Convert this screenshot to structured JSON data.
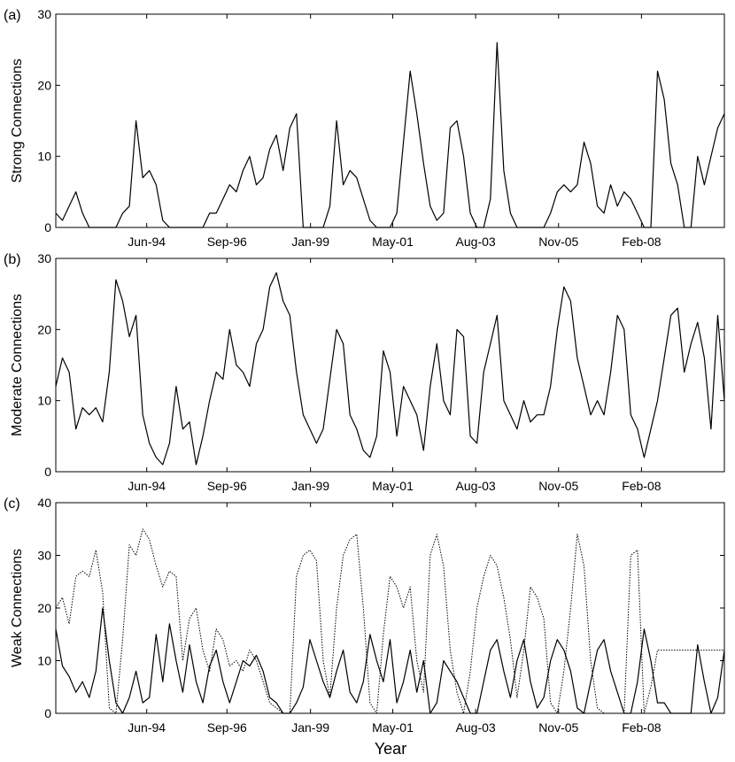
{
  "figure": {
    "xlabel": "Year"
  },
  "chart_data": [
    {
      "type": "line",
      "panel_label": "(a)",
      "ylabel": "Strong Connections",
      "xlabel": "",
      "title": "",
      "ylim": [
        0,
        30
      ],
      "yticks": [
        0,
        10,
        20,
        30
      ],
      "xlim": [
        0,
        100
      ],
      "xticks": [
        {
          "x": 13.6,
          "label": "Jun-94"
        },
        {
          "x": 25.6,
          "label": "Sep-96"
        },
        {
          "x": 38.1,
          "label": "Jan-99"
        },
        {
          "x": 50.4,
          "label": "May-01"
        },
        {
          "x": 62.8,
          "label": "Aug-03"
        },
        {
          "x": 75.2,
          "label": "Nov-05"
        },
        {
          "x": 87.6,
          "label": "Feb-08"
        }
      ],
      "series": [
        {
          "name": "solid",
          "style": "solid",
          "x": [
            0,
            1,
            2,
            3,
            4,
            5,
            6,
            7,
            8,
            9,
            10,
            11,
            12,
            13,
            14,
            15,
            16,
            17,
            18,
            19,
            20,
            21,
            22,
            23,
            24,
            25,
            26,
            27,
            28,
            29,
            30,
            31,
            32,
            33,
            34,
            35,
            36,
            37,
            38,
            39,
            40,
            41,
            42,
            43,
            44,
            45,
            46,
            47,
            48,
            49,
            50,
            51,
            52,
            53,
            54,
            55,
            56,
            57,
            58,
            59,
            60,
            61,
            62,
            63,
            64,
            65,
            66,
            67,
            68,
            69,
            70,
            71,
            72,
            73,
            74,
            75,
            76,
            77,
            78,
            79,
            80,
            81,
            82,
            83,
            84,
            85,
            86,
            87,
            88,
            89,
            90,
            91,
            92,
            93,
            94,
            95,
            96,
            97,
            98,
            99,
            100
          ],
          "values": [
            2,
            1,
            3,
            5,
            2,
            0,
            0,
            0,
            0,
            0,
            2,
            3,
            15,
            7,
            8,
            6,
            1,
            0,
            0,
            0,
            0,
            0,
            0,
            2,
            2,
            4,
            6,
            5,
            8,
            10,
            6,
            7,
            11,
            13,
            8,
            14,
            16,
            0,
            0,
            0,
            0,
            3,
            15,
            6,
            8,
            7,
            4,
            1,
            0,
            0,
            0,
            2,
            12,
            22,
            16,
            9,
            3,
            1,
            2,
            14,
            15,
            10,
            2,
            0,
            0,
            4,
            26,
            8,
            2,
            0,
            0,
            0,
            0,
            0,
            2,
            5,
            6,
            5,
            6,
            12,
            9,
            3,
            2,
            6,
            3,
            5,
            4,
            2,
            0,
            0,
            22,
            18,
            9,
            6,
            0,
            0,
            10,
            6,
            10,
            14,
            16
          ]
        }
      ]
    },
    {
      "type": "line",
      "panel_label": "(b)",
      "ylabel": "Moderate Connections",
      "xlabel": "",
      "title": "",
      "ylim": [
        0,
        30
      ],
      "yticks": [
        0,
        10,
        20,
        30
      ],
      "xlim": [
        0,
        100
      ],
      "xticks": [
        {
          "x": 13.6,
          "label": "Jun-94"
        },
        {
          "x": 25.6,
          "label": "Sep-96"
        },
        {
          "x": 38.1,
          "label": "Jan-99"
        },
        {
          "x": 50.4,
          "label": "May-01"
        },
        {
          "x": 62.8,
          "label": "Aug-03"
        },
        {
          "x": 75.2,
          "label": "Nov-05"
        },
        {
          "x": 87.6,
          "label": "Feb-08"
        }
      ],
      "series": [
        {
          "name": "solid",
          "style": "solid",
          "x": [
            0,
            1,
            2,
            3,
            4,
            5,
            6,
            7,
            8,
            9,
            10,
            11,
            12,
            13,
            14,
            15,
            16,
            17,
            18,
            19,
            20,
            21,
            22,
            23,
            24,
            25,
            26,
            27,
            28,
            29,
            30,
            31,
            32,
            33,
            34,
            35,
            36,
            37,
            38,
            39,
            40,
            41,
            42,
            43,
            44,
            45,
            46,
            47,
            48,
            49,
            50,
            51,
            52,
            53,
            54,
            55,
            56,
            57,
            58,
            59,
            60,
            61,
            62,
            63,
            64,
            65,
            66,
            67,
            68,
            69,
            70,
            71,
            72,
            73,
            74,
            75,
            76,
            77,
            78,
            79,
            80,
            81,
            82,
            83,
            84,
            85,
            86,
            87,
            88,
            89,
            90,
            91,
            92,
            93,
            94,
            95,
            96,
            97,
            98,
            99,
            100
          ],
          "values": [
            12,
            16,
            14,
            6,
            9,
            8,
            9,
            7,
            14,
            27,
            24,
            19,
            22,
            8,
            4,
            2,
            1,
            4,
            12,
            6,
            7,
            1,
            5,
            10,
            14,
            13,
            20,
            15,
            14,
            12,
            18,
            20,
            26,
            28,
            24,
            22,
            14,
            8,
            6,
            4,
            6,
            13,
            20,
            18,
            8,
            6,
            3,
            2,
            5,
            17,
            14,
            5,
            12,
            10,
            8,
            3,
            12,
            18,
            10,
            8,
            20,
            19,
            5,
            4,
            14,
            18,
            22,
            10,
            8,
            6,
            10,
            7,
            8,
            8,
            12,
            20,
            26,
            24,
            16,
            12,
            8,
            10,
            8,
            14,
            22,
            20,
            8,
            6,
            2,
            6,
            10,
            16,
            22,
            23,
            14,
            18,
            21,
            16,
            6,
            22,
            10
          ]
        }
      ]
    },
    {
      "type": "line",
      "panel_label": "(c)",
      "ylabel": "Weak Connections",
      "xlabel": "",
      "title": "",
      "ylim": [
        0,
        40
      ],
      "yticks": [
        0,
        10,
        20,
        30,
        40
      ],
      "xlim": [
        0,
        100
      ],
      "xticks": [
        {
          "x": 13.6,
          "label": "Jun-94"
        },
        {
          "x": 25.6,
          "label": "Sep-96"
        },
        {
          "x": 38.1,
          "label": "Jan-99"
        },
        {
          "x": 50.4,
          "label": "May-01"
        },
        {
          "x": 62.8,
          "label": "Aug-03"
        },
        {
          "x": 75.2,
          "label": "Nov-05"
        },
        {
          "x": 87.6,
          "label": "Feb-08"
        }
      ],
      "series": [
        {
          "name": "solid",
          "style": "solid",
          "x": [
            0,
            1,
            2,
            3,
            4,
            5,
            6,
            7,
            8,
            9,
            10,
            11,
            12,
            13,
            14,
            15,
            16,
            17,
            18,
            19,
            20,
            21,
            22,
            23,
            24,
            25,
            26,
            27,
            28,
            29,
            30,
            31,
            32,
            33,
            34,
            35,
            36,
            37,
            38,
            39,
            40,
            41,
            42,
            43,
            44,
            45,
            46,
            47,
            48,
            49,
            50,
            51,
            52,
            53,
            54,
            55,
            56,
            57,
            58,
            59,
            60,
            61,
            62,
            63,
            64,
            65,
            66,
            67,
            68,
            69,
            70,
            71,
            72,
            73,
            74,
            75,
            76,
            77,
            78,
            79,
            80,
            81,
            82,
            83,
            84,
            85,
            86,
            87,
            88,
            89,
            90,
            91,
            92,
            93,
            94,
            95,
            96,
            97,
            98,
            99,
            100
          ],
          "values": [
            16,
            9,
            7,
            4,
            6,
            3,
            8,
            20,
            10,
            2,
            0,
            3,
            8,
            2,
            3,
            15,
            6,
            17,
            10,
            4,
            13,
            6,
            2,
            9,
            12,
            6,
            2,
            6,
            10,
            9,
            11,
            8,
            3,
            2,
            0,
            0,
            2,
            5,
            14,
            10,
            6,
            3,
            8,
            12,
            4,
            2,
            6,
            15,
            10,
            6,
            14,
            2,
            6,
            12,
            4,
            10,
            0,
            2,
            10,
            8,
            6,
            3,
            0,
            0,
            6,
            12,
            14,
            8,
            3,
            10,
            14,
            6,
            1,
            3,
            10,
            14,
            12,
            8,
            1,
            0,
            6,
            12,
            14,
            8,
            4,
            0,
            0,
            6,
            16,
            10,
            2,
            2,
            0,
            0,
            0,
            0,
            13,
            6,
            0,
            3,
            12
          ]
        },
        {
          "name": "dotted",
          "style": "dotted",
          "x": [
            0,
            1,
            2,
            3,
            4,
            5,
            6,
            7,
            8,
            9,
            10,
            11,
            12,
            13,
            14,
            15,
            16,
            17,
            18,
            19,
            20,
            21,
            22,
            23,
            24,
            25,
            26,
            27,
            28,
            29,
            30,
            31,
            32,
            33,
            34,
            35,
            36,
            37,
            38,
            39,
            40,
            41,
            42,
            43,
            44,
            45,
            46,
            47,
            48,
            49,
            50,
            51,
            52,
            53,
            54,
            55,
            56,
            57,
            58,
            59,
            60,
            61,
            62,
            63,
            64,
            65,
            66,
            67,
            68,
            69,
            70,
            71,
            72,
            73,
            74,
            75,
            76,
            77,
            78,
            79,
            80,
            81,
            82,
            83,
            84,
            85,
            86,
            87,
            88,
            89,
            90,
            91,
            92,
            93,
            94,
            95,
            96,
            97,
            98,
            99,
            100
          ],
          "values": [
            20,
            22,
            17,
            26,
            27,
            26,
            31,
            23,
            1,
            0,
            14,
            32,
            30,
            35,
            33,
            28,
            24,
            27,
            26,
            10,
            18,
            20,
            12,
            8,
            16,
            14,
            9,
            10,
            8,
            12,
            10,
            6,
            2,
            1,
            0,
            0,
            26,
            30,
            31,
            29,
            10,
            3,
            20,
            30,
            33,
            34,
            20,
            2,
            0,
            15,
            26,
            24,
            20,
            24,
            10,
            4,
            30,
            34,
            28,
            12,
            4,
            0,
            8,
            20,
            26,
            30,
            28,
            22,
            14,
            3,
            12,
            24,
            22,
            18,
            2,
            0,
            8,
            20,
            34,
            28,
            10,
            1,
            0,
            0,
            0,
            0,
            30,
            31,
            0,
            5,
            12,
            12,
            12,
            12,
            12,
            12,
            12,
            12,
            12,
            12,
            12
          ]
        }
      ]
    }
  ]
}
